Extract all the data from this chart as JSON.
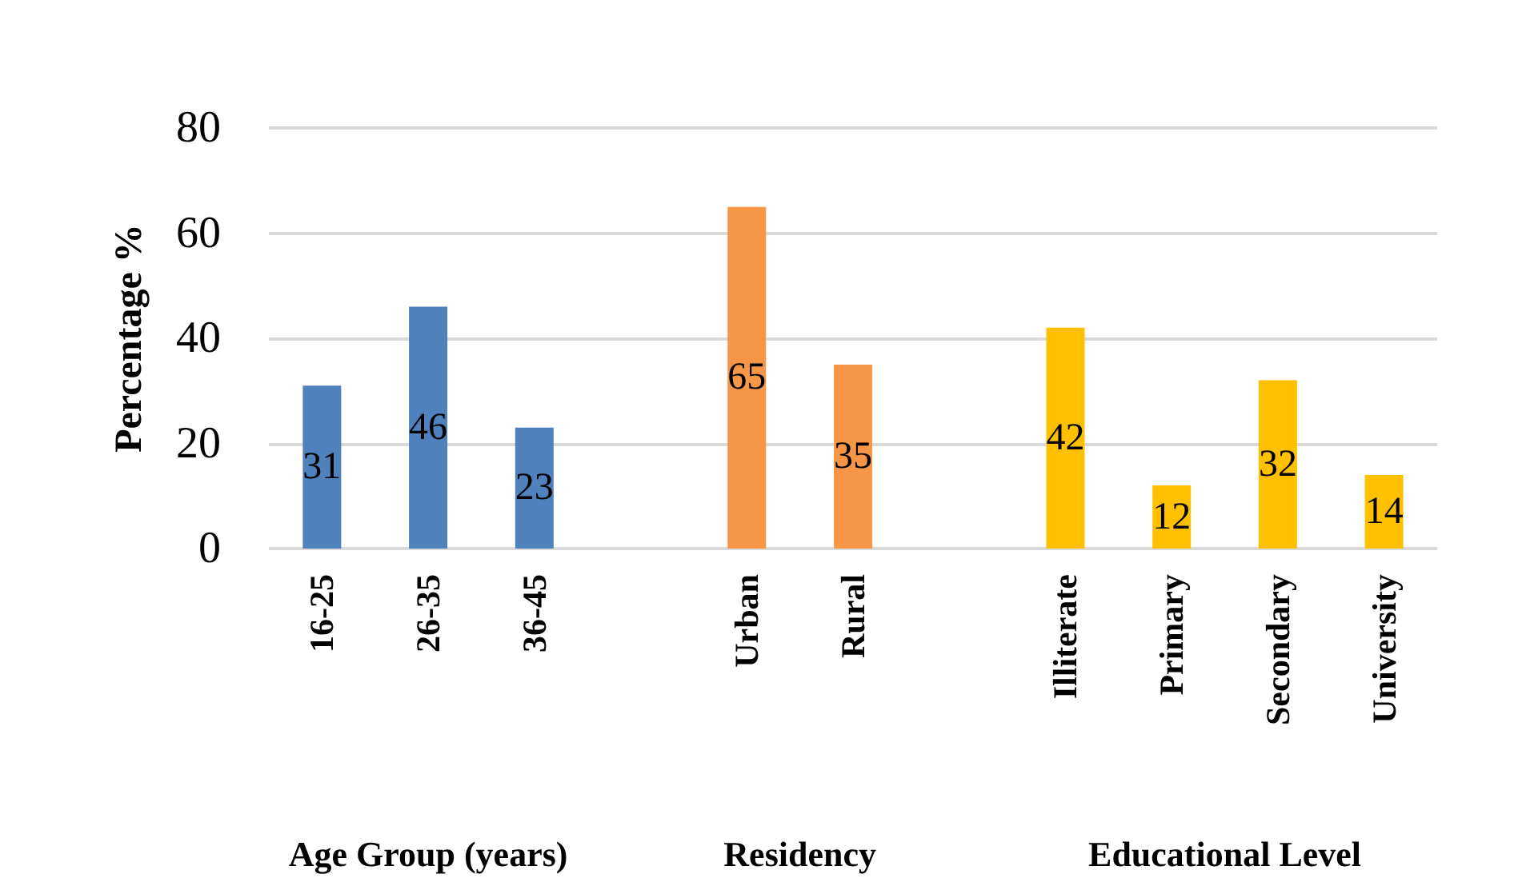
{
  "chart_data": {
    "type": "bar",
    "ylabel": "Percentage %",
    "categories": [
      "16-25",
      "26-35",
      "36-45",
      null,
      "Urban",
      "Rural",
      null,
      "Illiterate",
      "Primary",
      "Secondary",
      "University"
    ],
    "values": [
      31,
      46,
      23,
      null,
      65,
      35,
      null,
      42,
      12,
      32,
      14
    ],
    "colors": [
      "#4f81bd",
      "#4f81bd",
      "#4f81bd",
      "#ffffff",
      "#f79646",
      "#f79646",
      "#ffffff",
      "#ffc000",
      "#ffc000",
      "#ffc000",
      "#ffc000"
    ],
    "ylim": [
      0,
      80
    ],
    "yticks": [
      0,
      20,
      40,
      60,
      80
    ],
    "grid": "y",
    "data_labels": true,
    "annotations": [
      "Age Group (years)",
      "Residency",
      "Educational Level"
    ]
  }
}
